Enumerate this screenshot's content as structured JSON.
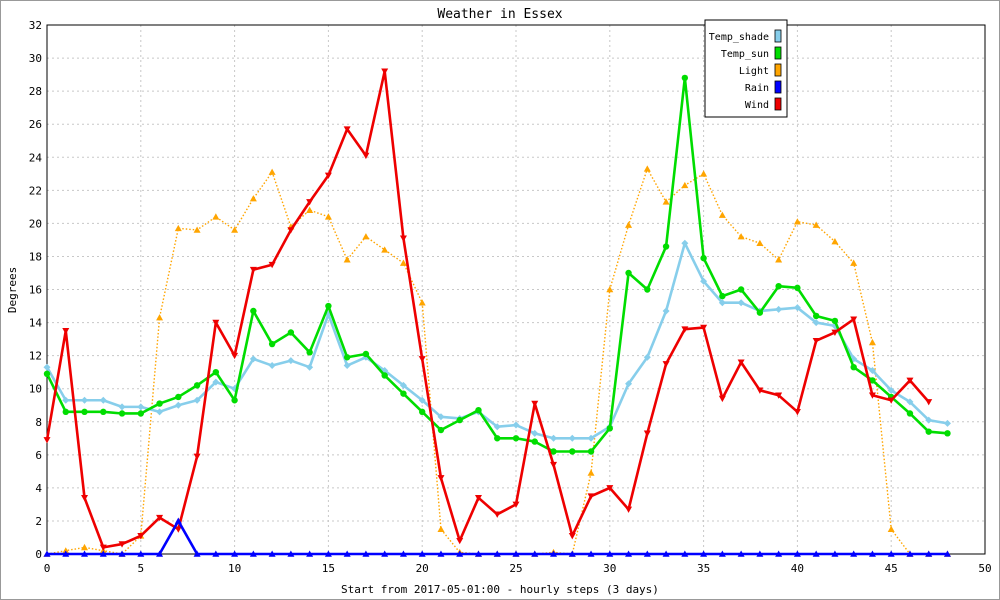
{
  "chart_data": {
    "type": "line",
    "title": "Weather in Essex",
    "xlabel": "Start from 2017-05-01:00 - hourly steps (3 days)",
    "ylabel": "Degrees",
    "xlim": [
      0,
      50
    ],
    "ylim": [
      0,
      32
    ],
    "xticks": [
      0,
      5,
      10,
      15,
      20,
      25,
      30,
      35,
      40,
      45,
      50
    ],
    "yticks": [
      0,
      2,
      4,
      6,
      8,
      10,
      12,
      14,
      16,
      18,
      20,
      22,
      24,
      26,
      28,
      30,
      32
    ],
    "grid": true,
    "legend_position": "top-right",
    "x": [
      0,
      1,
      2,
      3,
      4,
      5,
      6,
      7,
      8,
      9,
      10,
      11,
      12,
      13,
      14,
      15,
      16,
      17,
      18,
      19,
      20,
      21,
      22,
      23,
      24,
      25,
      26,
      27,
      28,
      29,
      30,
      31,
      32,
      33,
      34,
      35,
      36,
      37,
      38,
      39,
      40,
      41,
      42,
      43,
      44,
      45,
      46,
      47,
      48
    ],
    "series": [
      {
        "name": "Temp_shade",
        "color": "#87ceeb",
        "marker": "diamond",
        "style": "solid",
        "values": [
          11.3,
          9.3,
          9.3,
          9.3,
          8.9,
          8.9,
          8.6,
          9.0,
          9.3,
          10.4,
          10.0,
          11.8,
          11.4,
          11.7,
          11.3,
          14.5,
          11.4,
          11.9,
          11.1,
          10.2,
          9.3,
          8.3,
          8.2,
          8.6,
          7.7,
          7.8,
          7.3,
          7.0,
          7.0,
          7.0,
          7.7,
          10.3,
          11.9,
          14.7,
          18.8,
          16.5,
          15.2,
          15.2,
          14.7,
          14.8,
          14.9,
          14.0,
          13.8,
          11.8,
          11.1,
          9.9,
          9.2,
          8.1,
          7.9
        ]
      },
      {
        "name": "Temp_sun",
        "color": "#00dd00",
        "marker": "circle",
        "style": "solid",
        "values": [
          10.9,
          8.6,
          8.6,
          8.6,
          8.5,
          8.5,
          9.1,
          9.5,
          10.2,
          11.0,
          9.3,
          14.7,
          12.7,
          13.4,
          12.2,
          15.0,
          11.9,
          12.1,
          10.8,
          9.7,
          8.6,
          7.5,
          8.1,
          8.7,
          7.0,
          7.0,
          6.8,
          6.2,
          6.2,
          6.2,
          7.6,
          17.0,
          16.0,
          18.6,
          28.8,
          17.9,
          15.6,
          16.0,
          14.6,
          16.2,
          16.1,
          14.4,
          14.1,
          11.3,
          10.5,
          9.5,
          8.5,
          7.4,
          7.3
        ]
      },
      {
        "name": "Light",
        "color": "#ffa500",
        "marker": "triangle-up",
        "style": "dotted",
        "values": [
          0.0,
          0.2,
          0.4,
          0.2,
          0.0,
          1.1,
          14.3,
          19.7,
          19.6,
          20.4,
          19.6,
          21.5,
          23.1,
          19.8,
          20.8,
          20.4,
          17.8,
          19.2,
          18.4,
          17.6,
          15.2,
          1.5,
          0.1,
          0.0,
          0.0,
          0.0,
          0.0,
          0.1,
          0.0,
          4.9,
          16.0,
          19.9,
          23.3,
          21.3,
          22.3,
          23.0,
          20.5,
          19.2,
          18.8,
          17.8,
          20.1,
          19.9,
          18.9,
          17.6,
          12.8,
          1.5,
          0.0,
          0.0,
          0.0
        ]
      },
      {
        "name": "Rain",
        "color": "#0000ff",
        "marker": "triangle-up",
        "style": "solid",
        "values": [
          0,
          0,
          0,
          0,
          0,
          0,
          0,
          2.0,
          0,
          0,
          0,
          0,
          0,
          0,
          0,
          0,
          0,
          0,
          0,
          0,
          0,
          0,
          0,
          0,
          0,
          0,
          0,
          0,
          0,
          0,
          0,
          0,
          0,
          0,
          0,
          0,
          0,
          0,
          0,
          0,
          0,
          0,
          0,
          0,
          0,
          0,
          0,
          0,
          0
        ]
      },
      {
        "name": "Wind",
        "color": "#ee0000",
        "marker": "triangle-down",
        "style": "solid",
        "values": [
          6.9,
          13.5,
          3.4,
          0.4,
          0.6,
          1.1,
          2.2,
          1.5,
          5.9,
          14.0,
          12.0,
          17.2,
          17.5,
          19.6,
          21.3,
          22.9,
          25.7,
          24.1,
          29.2,
          19.1,
          11.8,
          4.6,
          0.8,
          3.4,
          2.4,
          3.0,
          9.1,
          5.4,
          1.1,
          3.5,
          4.0,
          2.7,
          7.3,
          11.5,
          13.6,
          13.7,
          9.4,
          11.6,
          9.9,
          9.6,
          8.6,
          12.9,
          13.4,
          14.2,
          9.6,
          9.3,
          10.5,
          9.2,
          null
        ]
      }
    ]
  }
}
